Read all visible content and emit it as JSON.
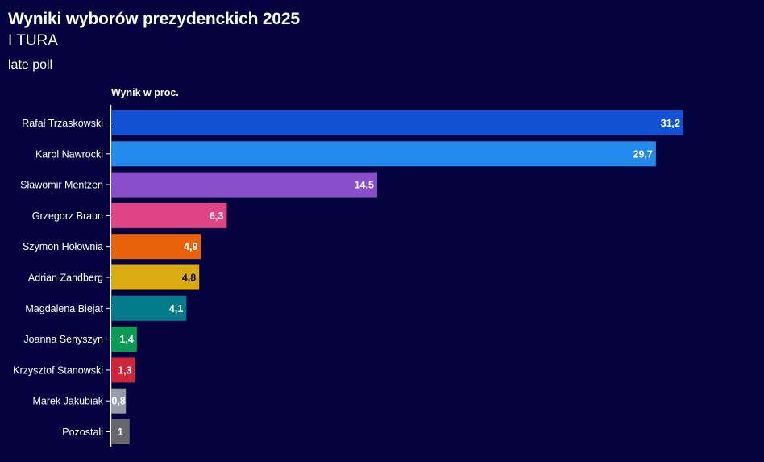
{
  "chart_data": {
    "type": "bar",
    "orientation": "horizontal",
    "title": "Wyniki wyborów prezydenckich 2025",
    "subtitle": "I TURA",
    "note": "late poll",
    "xlabel": "Wynik w proc.",
    "ylabel": "",
    "xlim": [
      0,
      31.2
    ],
    "grid": false,
    "legend": "none",
    "categories": [
      "Rafał Trzaskowski",
      "Karol Nawrocki",
      "Sławomir Mentzen",
      "Grzegorz Braun",
      "Szymon Hołownia",
      "Adrian Zandberg",
      "Magdalena Biejat",
      "Joanna Senyszyn",
      "Krzysztof Stanowski",
      "Marek Jakubiak",
      "Pozostali"
    ],
    "values": [
      31.2,
      29.7,
      14.5,
      6.3,
      4.9,
      4.8,
      4.1,
      1.4,
      1.3,
      0.8,
      1
    ],
    "value_labels": [
      "31,2",
      "29,7",
      "14,5",
      "6,3",
      "4,9",
      "4,8",
      "4,1",
      "1,4",
      "1,3",
      "0,8",
      "1"
    ],
    "colors": [
      "#1152d4",
      "#238bec",
      "#894fca",
      "#df4485",
      "#e8620c",
      "#dbab12",
      "#047b8b",
      "#0a9b55",
      "#cf2536",
      "#979ba6",
      "#67666d"
    ],
    "label_colors": [
      "#ffffff",
      "#ffffff",
      "#ffffff",
      "#ffffff",
      "#ffffff",
      "#111111",
      "#ffffff",
      "#ffffff",
      "#ffffff",
      "#ffffff",
      "#ffffff"
    ]
  }
}
